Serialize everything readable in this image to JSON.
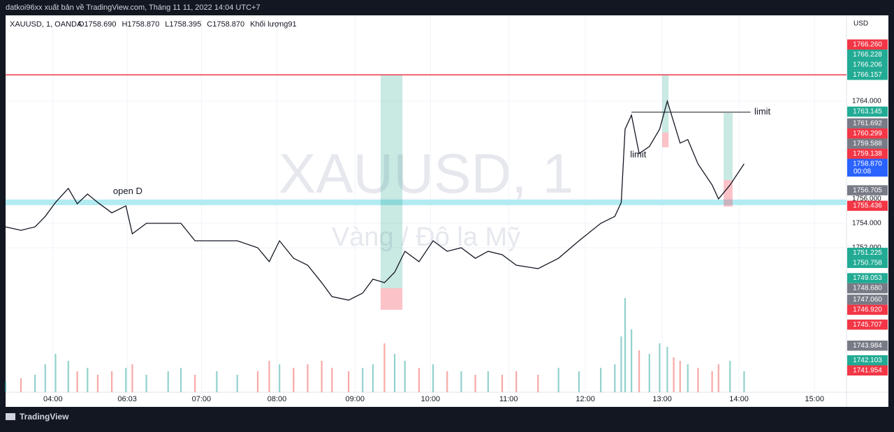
{
  "publisher": "datkoi96xx xuất bản về TradingView.com, Tháng 11 11, 2022 14:04 UTC+7",
  "brand": "TradingView",
  "chart_data": {
    "type": "line",
    "title": "XAUUSD, 1, OANDA",
    "ohlc": [
      "O1758.690",
      "H1758.870",
      "L1758.395",
      "C1758.870",
      "Khối lượng91"
    ],
    "watermark": "XAUUSD, 1",
    "subtitle": "Vàng / Đô la Mỹ",
    "currency": "USD",
    "x": [
      0,
      12,
      23,
      31,
      39,
      49,
      56,
      64,
      72,
      83,
      94,
      99,
      110,
      127,
      137,
      148,
      165,
      181,
      197,
      206,
      214,
      225,
      236,
      247,
      255,
      268,
      279,
      287,
      296,
      304,
      312,
      323,
      334,
      345,
      356,
      367,
      377,
      388,
      399,
      416,
      432,
      448,
      465,
      476,
      481,
      484,
      489,
      495,
      503,
      511,
      517,
      522,
      527,
      533,
      541,
      552,
      557,
      566,
      577
    ],
    "series": [
      {
        "color": "#131722",
        "values": [
          1753.71,
          1753.43,
          1753.71,
          1754.57,
          1755.71,
          1756.86,
          1755.6,
          1756.4,
          1755.71,
          1754.86,
          1755.43,
          1753.14,
          1754,
          1754,
          1754,
          1752.57,
          1752.57,
          1752.57,
          1752,
          1750.86,
          1752.57,
          1751.14,
          1750.57,
          1749.14,
          1748,
          1747.71,
          1748.29,
          1749.43,
          1749.14,
          1750,
          1751.71,
          1750.86,
          1752.57,
          1751.71,
          1752,
          1751.14,
          1751.71,
          1751.43,
          1750.57,
          1750.29,
          1751.14,
          1752.57,
          1754,
          1754.57,
          1755.71,
          1761.71,
          1762.86,
          1759.71,
          1760.29,
          1761.71,
          1764,
          1762.29,
          1760.57,
          1760.86,
          1758.86,
          1757.14,
          1756,
          1757.14,
          1758.87
        ]
      }
    ],
    "volume": [
      15,
      20,
      25,
      40,
      55,
      45,
      30,
      35,
      25,
      30,
      35,
      40,
      25,
      30,
      35,
      25,
      30,
      25,
      30,
      45,
      40,
      35,
      40,
      45,
      35,
      30,
      35,
      40,
      70,
      55,
      45,
      35,
      40,
      30,
      30,
      25,
      30,
      25,
      30,
      25,
      35,
      30,
      35,
      40,
      80,
      135,
      90,
      60,
      55,
      70,
      65,
      50,
      45,
      40,
      35,
      30,
      40,
      45,
      30
    ],
    "xlim": [
      0,
      657
    ],
    "ylim": [
      1740.17,
      1771.03
    ],
    "xticks": [
      {
        "value": 37,
        "label": "04:00"
      },
      {
        "value": 95,
        "label": "06:03"
      },
      {
        "value": 153,
        "label": "07:00"
      },
      {
        "value": 212,
        "label": "08:00"
      },
      {
        "value": 273,
        "label": "09:00"
      },
      {
        "value": 332,
        "label": "10:00"
      },
      {
        "value": 393,
        "label": "11:00"
      },
      {
        "value": 453,
        "label": "12:00"
      },
      {
        "value": 513,
        "label": "13:00"
      },
      {
        "value": 573,
        "label": "14:00"
      },
      {
        "value": 632,
        "label": "15:00"
      }
    ],
    "yticks": [
      {
        "value": 1752,
        "label": "1752.000"
      },
      {
        "value": 1754,
        "label": "1754.000"
      },
      {
        "value": 1756,
        "label": "1756.000"
      },
      {
        "value": 1764,
        "label": "1764.000"
      }
    ],
    "grid": true,
    "resistance_line": {
      "value": 1766.157,
      "color": "#f23645"
    },
    "support_zone": {
      "range": [
        1755.49,
        1755.94
      ],
      "color": "#b2ebf2"
    },
    "positions": [
      {
        "x": [
          293,
          310
        ],
        "entry": 1748.69,
        "target": 1766.17,
        "stop": 1746.92
      },
      {
        "x": [
          513,
          518
        ],
        "entry": 1761.43,
        "target": 1766.17,
        "stop": 1760.23
      },
      {
        "x": [
          561,
          568
        ],
        "entry": 1757.54,
        "target": 1763.03,
        "stop": 1755.37
      }
    ],
    "annotations": [
      {
        "text": "open D",
        "x": 84,
        "y": 1756.6
      },
      {
        "text": "limit",
        "x": 585,
        "y": 1763.1,
        "line": [
          489,
          582
        ]
      },
      {
        "text": "limit",
        "x": 488,
        "y": 1759.6
      }
    ],
    "price_labels": [
      {
        "value": 1766.26,
        "label": "1766.260",
        "color": "#f23645"
      },
      {
        "value": 1766.228,
        "label": "1766.228",
        "color": "#22ab94"
      },
      {
        "value": 1766.206,
        "label": "1766.206",
        "color": "#22ab94"
      },
      {
        "value": 1766.157,
        "label": "1766.157",
        "color": "#22ab94"
      },
      {
        "value": 1763.145,
        "label": "1763.145",
        "color": "#22ab94"
      },
      {
        "value": 1761.692,
        "label": "1761.692",
        "color": "#787b86"
      },
      {
        "value": 1760.299,
        "label": "1760.299",
        "color": "#f23645"
      },
      {
        "value": 1759.588,
        "label": "1759.588",
        "color": "#787b86"
      },
      {
        "value": 1759.138,
        "label": "1759.138",
        "color": "#f23645"
      },
      {
        "value": 1758.87,
        "label": "1758.870",
        "color": "#2962ff",
        "sub": "00:08"
      },
      {
        "value": 1756.705,
        "label": "1756.705",
        "color": "#787b86"
      },
      {
        "value": 1755.436,
        "label": "1755.436",
        "color": "#f23645"
      },
      {
        "value": 1751.225,
        "label": "1751.225",
        "color": "#22ab94"
      },
      {
        "value": 1750.758,
        "label": "1750.758",
        "color": "#22ab94"
      },
      {
        "value": 1749.053,
        "label": "1749.053",
        "color": "#22ab94"
      },
      {
        "value": 1748.68,
        "label": "1748.680",
        "color": "#787b86"
      },
      {
        "value": 1747.06,
        "label": "1747.060",
        "color": "#787b86"
      },
      {
        "value": 1746.92,
        "label": "1746.920",
        "color": "#f23645"
      },
      {
        "value": 1745.707,
        "label": "1745.707",
        "color": "#f23645"
      },
      {
        "value": 1743.984,
        "label": "1743.984",
        "color": "#787b86"
      },
      {
        "value": 1742.103,
        "label": "1742.103",
        "color": "#22ab94"
      },
      {
        "value": 1741.954,
        "label": "1741.954",
        "color": "#f23645"
      }
    ]
  }
}
